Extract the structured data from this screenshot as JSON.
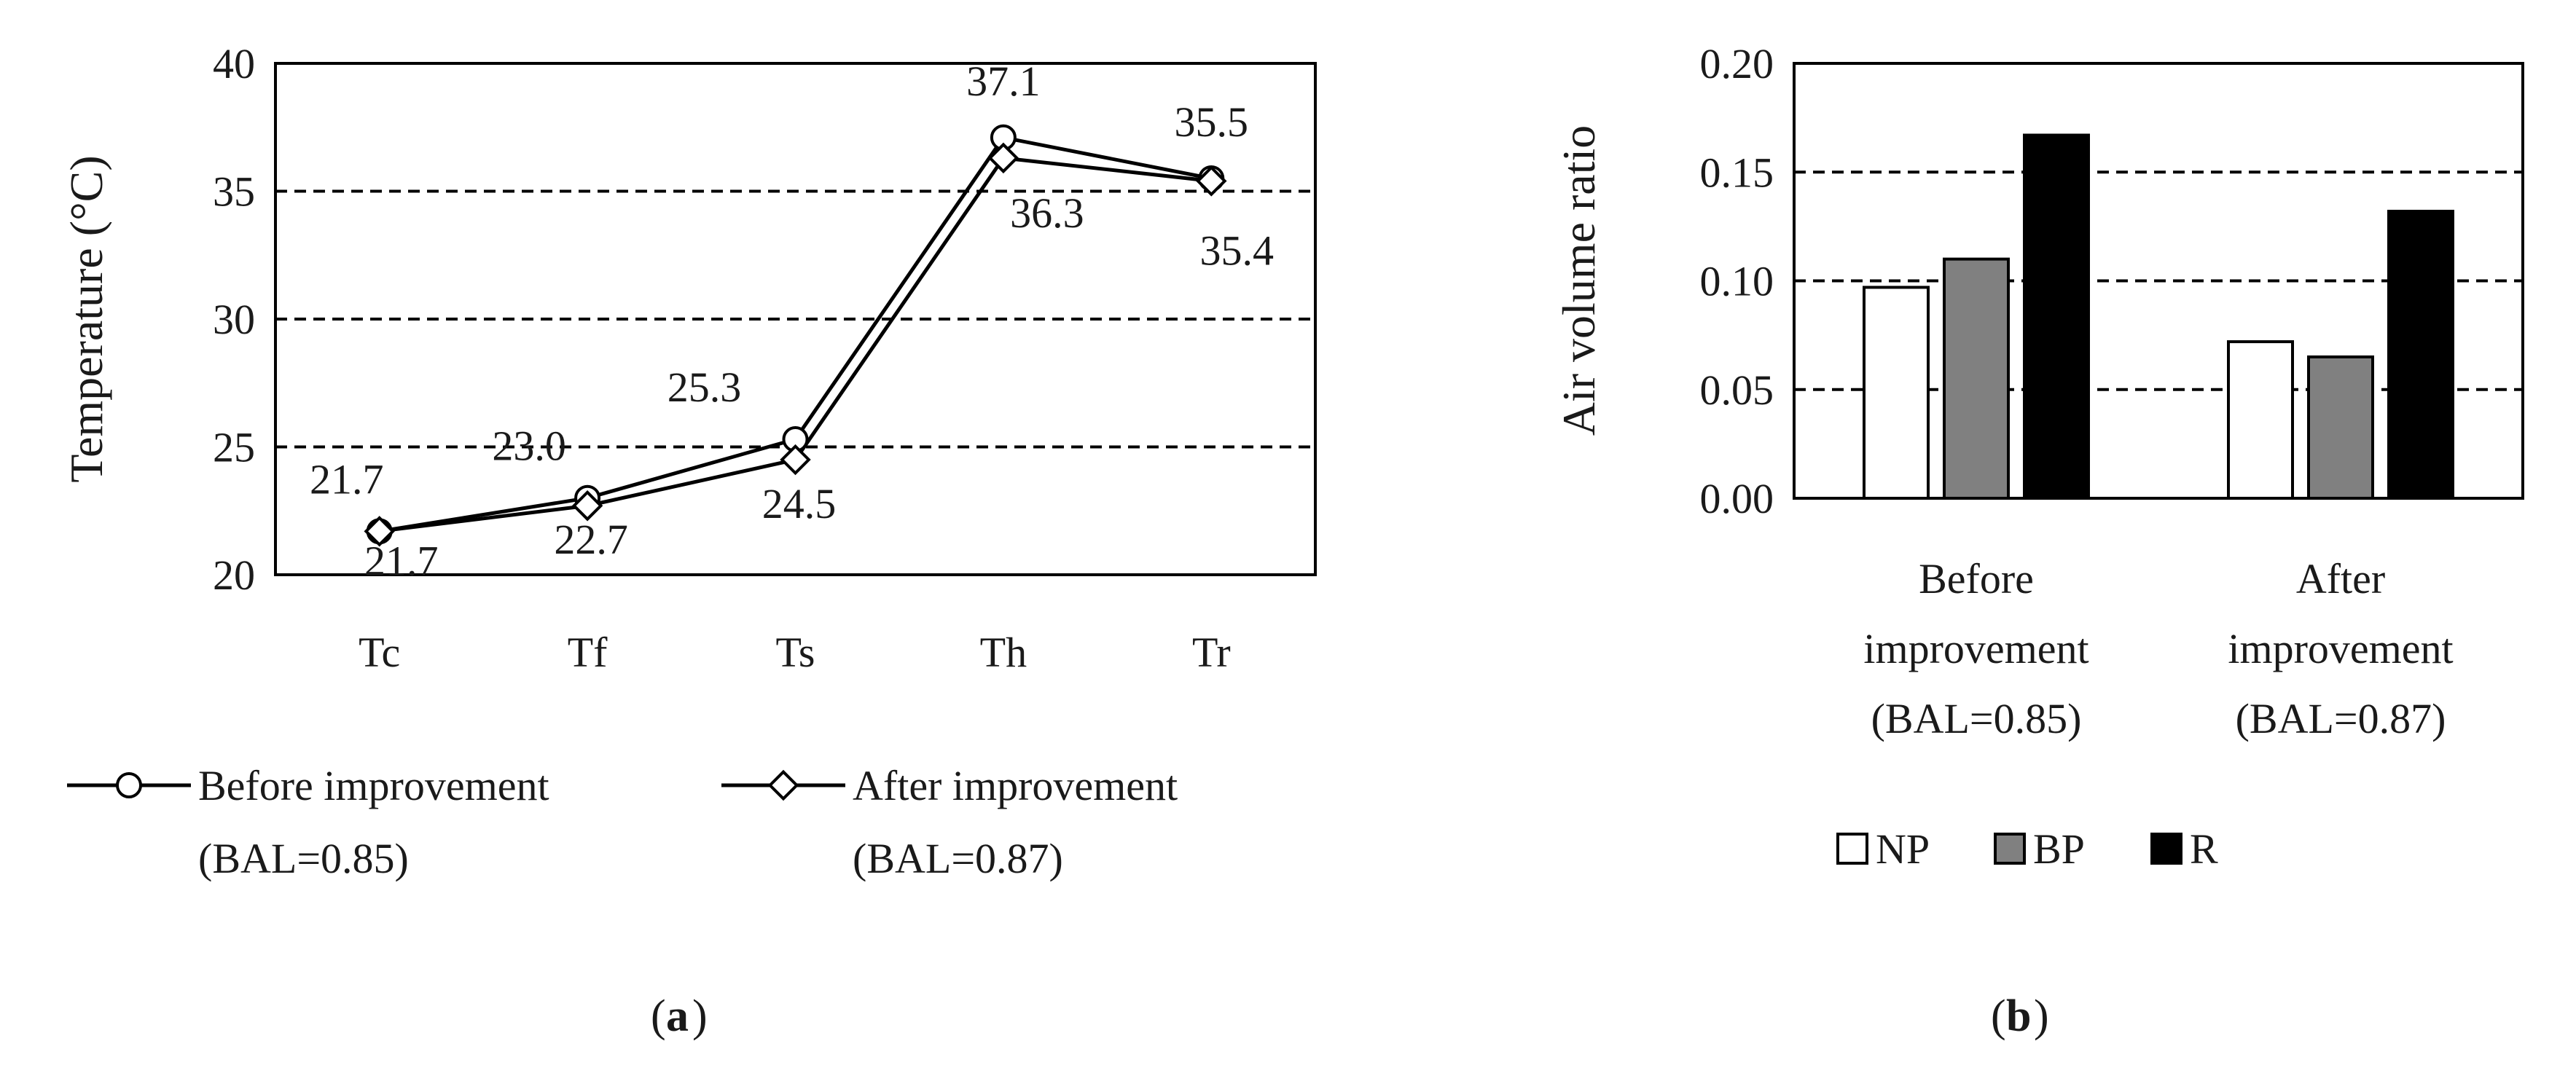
{
  "chart_data": [
    {
      "type": "line",
      "panel_label": "a",
      "categories": [
        "Tc",
        "Tf",
        "Ts",
        "Th",
        "Tr"
      ],
      "ylabel": "Temperature (°C)",
      "ylim": [
        20,
        40
      ],
      "yticks": [
        "20",
        "25",
        "30",
        "35",
        "40"
      ],
      "grid": "dashed horizontal at 25, 30, 35",
      "legend": "bottom",
      "series": [
        {
          "name_line1": "Before improvement",
          "name_line2": "(BAL=0.85)",
          "marker": "circle",
          "values": [
            21.7,
            23.0,
            25.3,
            37.1,
            35.5
          ],
          "labels": [
            "21.7",
            "23.0",
            "25.3",
            "37.1",
            "35.5"
          ]
        },
        {
          "name_line1": "After improvement",
          "name_line2": "(BAL=0.87)",
          "marker": "diamond",
          "values": [
            21.7,
            22.7,
            24.5,
            36.3,
            35.4
          ],
          "labels": [
            "21.7",
            "22.7",
            "24.5",
            "36.3",
            "35.4"
          ]
        }
      ]
    },
    {
      "type": "bar",
      "panel_label": "b",
      "ylabel": "Air volume ratio",
      "ylim": [
        0,
        0.2
      ],
      "yticks": [
        "0.00",
        "0.05",
        "0.10",
        "0.15",
        "0.20"
      ],
      "grid": "dashed horizontal at 0.05, 0.10, 0.15",
      "legend": "bottom",
      "categories": [
        [
          "Before",
          "improvement",
          "(BAL=0.85)"
        ],
        [
          "After",
          "improvement",
          "(BAL=0.87)"
        ]
      ],
      "series": [
        {
          "name": "NP",
          "color": "#ffffff",
          "values": [
            0.097,
            0.072
          ]
        },
        {
          "name": "BP",
          "color": "#808080",
          "values": [
            0.11,
            0.065
          ]
        },
        {
          "name": "R",
          "color": "#000000",
          "values": [
            0.167,
            0.132
          ]
        }
      ]
    }
  ]
}
